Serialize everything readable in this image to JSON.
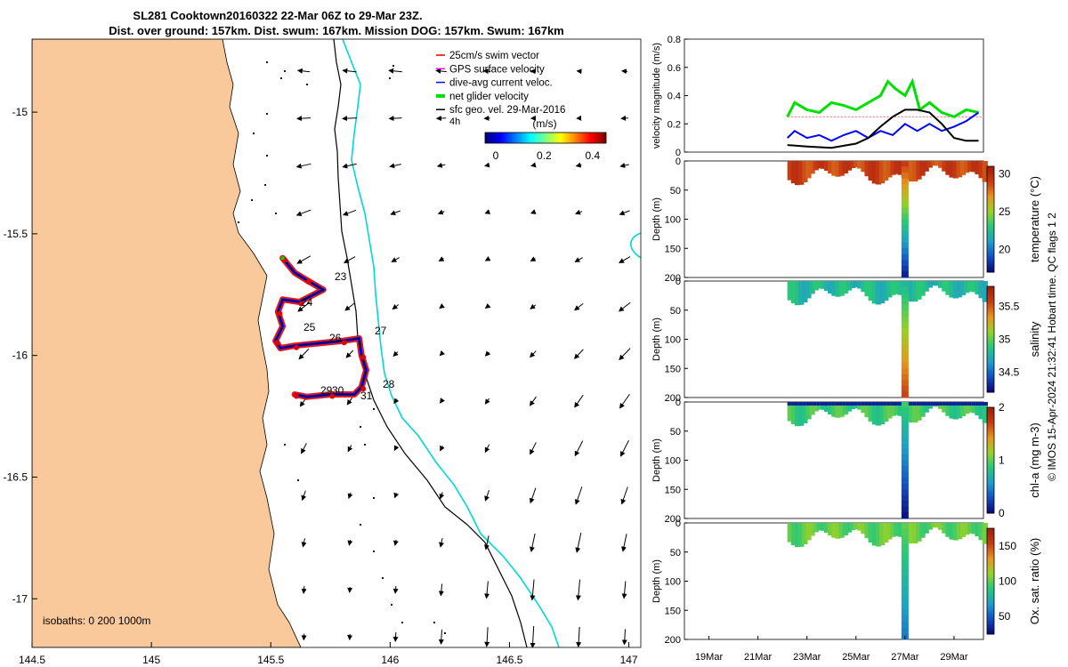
{
  "title_line1": "SL281 Cooktown20160322 22-Mar 06Z to 29-Mar 23Z.",
  "title_line2": "Dist. over ground: 157km. Dist. swum: 167km. Mission DOG: 157km. Swum: 167km",
  "map": {
    "xticks": [
      "144.5",
      "145",
      "145.5",
      "146",
      "146.5",
      "147"
    ],
    "yticks": [
      "-15",
      "-15.5",
      "-16",
      "-16.5",
      "-17"
    ],
    "xlim": [
      144.5,
      147.05
    ],
    "ylim": [
      -17.2,
      -14.7
    ],
    "isobaths_label": "isobaths: 0   200  1000m",
    "legend": [
      {
        "label": "25cm/s swim vector",
        "color": "#e00000"
      },
      {
        "label": "GPS surface velocity",
        "color": "#ff00ff"
      },
      {
        "label": "dive-avg current veloc.",
        "color": "#0000ff"
      },
      {
        "label": "net glider velocity",
        "color": "#00e000"
      },
      {
        "label": "sfc geo. vel. 29-Mar-2016",
        "color": "#000000"
      }
    ],
    "time_label": "4h",
    "colorbar_title": "(m/s)",
    "colorbar_ticks": [
      "0",
      "0.2",
      "0.4"
    ],
    "day_labels": [
      "23",
      "24",
      "25",
      "26",
      "27",
      "28",
      "29",
      "30",
      "31"
    ],
    "land_color": "#f9c89b",
    "isobath_200_color": "#000000",
    "isobath_1000_color": "#00d8d8"
  },
  "panels": {
    "velocity": {
      "ylabel": "velocity magnitude (m/s)",
      "yticks": [
        "0",
        "0.2",
        "0.4",
        "0.6",
        "0.8"
      ]
    },
    "depth_ylabel": "Depth (m)",
    "depth_yticks": [
      "0",
      "50",
      "100",
      "150",
      "200"
    ],
    "temperature": {
      "label": "temperature (°C)",
      "cticks": [
        "20",
        "25",
        "30"
      ]
    },
    "salinity": {
      "label": "salinity",
      "cticks": [
        "34.5",
        "35",
        "35.5"
      ]
    },
    "chla": {
      "label": "chl-a (mg m-3)",
      "cticks": [
        "0",
        "1",
        "2"
      ]
    },
    "oxygen": {
      "label": "Ox. sat. ratio (%)",
      "cticks": [
        "50",
        "100",
        "150"
      ]
    },
    "xticks": [
      "19Mar",
      "21Mar",
      "23Mar",
      "25Mar",
      "27Mar",
      "29Mar"
    ]
  },
  "footer": "© IMOS 15-Apr-2024 21:32:41 Hobart time. QC flags 1  2",
  "chart_data": [
    {
      "type": "scatter",
      "title": "SL281 Cooktown20160322 22-Mar 06Z to 29-Mar 23Z.",
      "description_series": [
        "25cm/s swim vector",
        "GPS surface velocity",
        "dive-avg current veloc.",
        "net glider velocity",
        "sfc geo. vel. 29-Mar-2016"
      ],
      "glider_track": {
        "lon": [
          145.55,
          145.6,
          145.65,
          145.72,
          145.62,
          145.55,
          145.53,
          145.55,
          145.52,
          145.54,
          145.6,
          145.7,
          145.8,
          145.87,
          145.88,
          145.9,
          145.88,
          145.85,
          145.75,
          145.65,
          145.6
        ],
        "lat": [
          -15.6,
          -15.66,
          -15.69,
          -15.73,
          -15.78,
          -15.77,
          -15.82,
          -15.88,
          -15.94,
          -15.97,
          -15.96,
          -15.95,
          -15.94,
          -15.93,
          -16.0,
          -16.06,
          -16.13,
          -16.16,
          -16.16,
          -16.17,
          -16.16
        ]
      },
      "xlim": [
        144.5,
        147.05
      ],
      "ylim": [
        -17.2,
        -14.7
      ]
    },
    {
      "type": "line",
      "ylabel": "velocity magnitude (m/s)",
      "ylim": [
        0,
        0.8
      ],
      "x_unit": "day of March 2016",
      "xlim": [
        18,
        30.2
      ],
      "series": [
        {
          "name": "net glider velocity",
          "color": "#00e000",
          "x": [
            22.2,
            22.5,
            23,
            23.5,
            24,
            24.5,
            25,
            25.5,
            26,
            26.3,
            26.6,
            27,
            27.3,
            27.6,
            28,
            28.5,
            29,
            29.5,
            30
          ],
          "values": [
            0.25,
            0.35,
            0.3,
            0.28,
            0.35,
            0.33,
            0.3,
            0.35,
            0.4,
            0.5,
            0.45,
            0.4,
            0.5,
            0.3,
            0.35,
            0.28,
            0.25,
            0.3,
            0.28
          ]
        },
        {
          "name": "dive-avg current veloc.",
          "color": "#0000ff",
          "x": [
            22.2,
            22.5,
            23,
            23.5,
            24,
            24.5,
            25,
            25.5,
            26,
            26.5,
            27,
            27.5,
            28,
            28.5,
            29,
            29.5,
            30
          ],
          "values": [
            0.1,
            0.15,
            0.1,
            0.12,
            0.08,
            0.12,
            0.15,
            0.1,
            0.15,
            0.12,
            0.2,
            0.15,
            0.2,
            0.15,
            0.18,
            0.22,
            0.28
          ]
        },
        {
          "name": "sfc geo. vel.",
          "color": "#000000",
          "x": [
            22.2,
            23,
            24,
            25,
            25.5,
            26,
            26.5,
            27,
            27.5,
            28,
            28.5,
            29,
            29.5,
            30
          ],
          "values": [
            0.05,
            0.04,
            0.03,
            0.06,
            0.1,
            0.18,
            0.25,
            0.3,
            0.3,
            0.28,
            0.2,
            0.1,
            0.08,
            0.08
          ]
        }
      ],
      "swim_speed_reference": 0.25
    },
    {
      "type": "heatmap",
      "ylabel": "Depth (m)",
      "colorbar_label": "temperature (°C)",
      "clim": [
        17,
        31
      ],
      "ylim": [
        200,
        0
      ],
      "typical_value": 29,
      "deep_profile_day": 27,
      "deep_profile_min": 18
    },
    {
      "type": "heatmap",
      "ylabel": "Depth (m)",
      "colorbar_label": "salinity",
      "clim": [
        34.2,
        35.8
      ],
      "ylim": [
        200,
        0
      ],
      "typical_value": 34.8
    },
    {
      "type": "heatmap",
      "ylabel": "Depth (m)",
      "colorbar_label": "chl-a (mg m-3)",
      "clim": [
        0,
        2
      ],
      "ylim": [
        200,
        0
      ],
      "typical_value": 0.9
    },
    {
      "type": "heatmap",
      "ylabel": "Depth (m)",
      "colorbar_label": "Ox. sat. ratio (%)",
      "clim": [
        25,
        175
      ],
      "ylim": [
        200,
        0
      ],
      "typical_value": 100
    }
  ]
}
